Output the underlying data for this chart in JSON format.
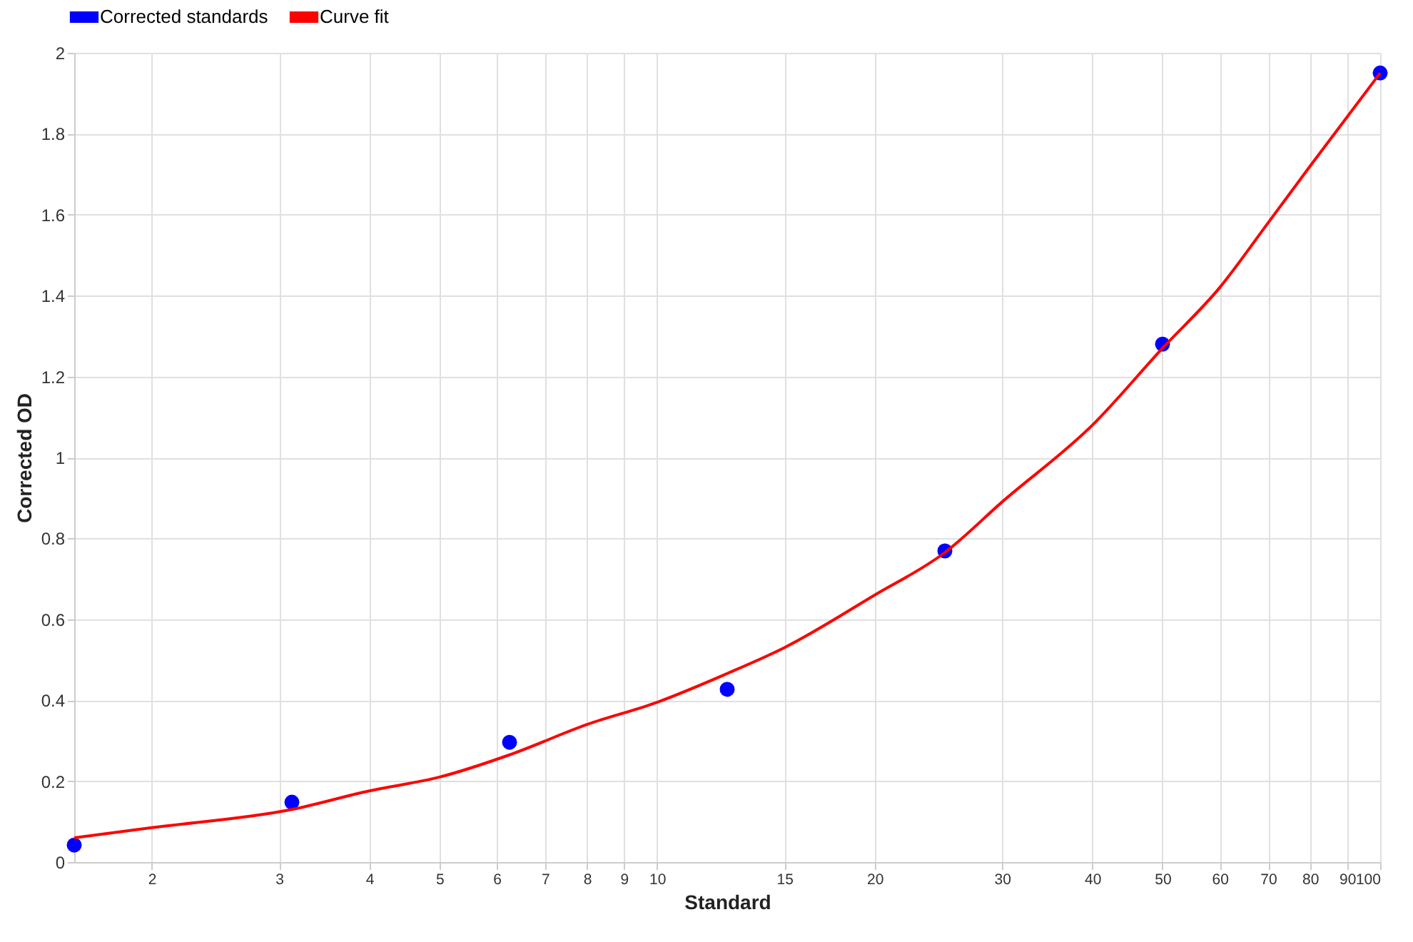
{
  "chart_data": {
    "type": "scatter",
    "xlabel": "Standard",
    "ylabel": "Corrected OD",
    "log": "x",
    "grid": true,
    "legend": "top",
    "xlim": [
      1.5625,
      100
    ],
    "xticks": [
      2,
      3,
      4,
      5,
      6,
      7,
      8,
      9,
      10,
      15,
      20,
      30,
      40,
      50,
      60,
      70,
      80,
      90,
      100
    ],
    "ylim": [
      0,
      2
    ],
    "yticks": [
      0,
      0.2,
      0.4,
      0.6,
      0.8,
      1,
      1.2,
      1.4,
      1.6,
      1.8,
      2
    ],
    "series": [
      {
        "name": "Corrected standards",
        "marker": "circle",
        "color": "#0000ff",
        "x": [
          1.5625,
          3.125,
          6.25,
          12.5,
          25,
          50,
          100
        ],
        "values": [
          0.042,
          0.148,
          0.296,
          0.427,
          0.769,
          1.28,
          1.95
        ]
      },
      {
        "name": "Curve fit",
        "type": "line",
        "marker": "none",
        "line_style": "solid",
        "color": "#ff0000",
        "x": [
          1.5625,
          2,
          3.125,
          4,
          5,
          6.25,
          8,
          10,
          12.5,
          15,
          20,
          25,
          30,
          40,
          50,
          60,
          70,
          80,
          100
        ],
        "values": [
          0.06,
          0.085,
          0.13,
          0.176,
          0.21,
          0.265,
          0.34,
          0.395,
          0.466,
          0.53,
          0.66,
          0.765,
          0.89,
          1.08,
          1.27,
          1.42,
          1.58,
          1.72,
          1.95
        ]
      }
    ]
  }
}
